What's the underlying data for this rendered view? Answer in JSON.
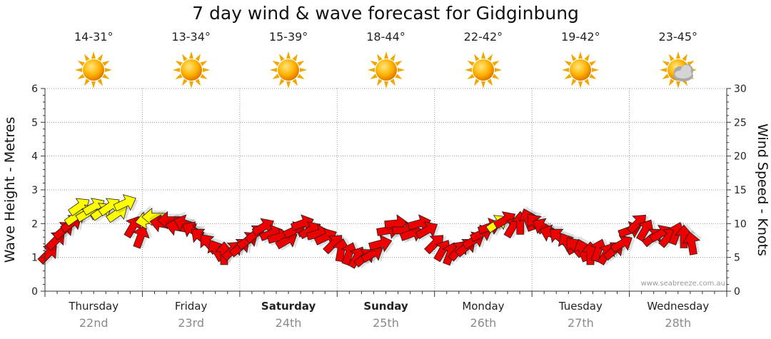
{
  "title": "7 day wind & wave forecast for Gidginbung",
  "watermark": "www.seabreeze.com.au",
  "days": [
    {
      "name": "Thursday",
      "date": "22nd",
      "temp": "14-31°",
      "icon": "sun-icon",
      "bold": false
    },
    {
      "name": "Friday",
      "date": "23rd",
      "temp": "13-34°",
      "icon": "sun-icon",
      "bold": false
    },
    {
      "name": "Saturday",
      "date": "24th",
      "temp": "15-39°",
      "icon": "sun-icon",
      "bold": true
    },
    {
      "name": "Sunday",
      "date": "25th",
      "temp": "18-44°",
      "icon": "sun-icon",
      "bold": true
    },
    {
      "name": "Monday",
      "date": "26th",
      "temp": "22-42°",
      "icon": "sun-icon",
      "bold": false
    },
    {
      "name": "Tuesday",
      "date": "27th",
      "temp": "19-42°",
      "icon": "sun-icon",
      "bold": false
    },
    {
      "name": "Wednesday",
      "date": "28th",
      "temp": "23-45°",
      "icon": "sun-cloud-icon",
      "bold": false
    }
  ],
  "chart_data": {
    "type": "scatter",
    "title": "7 day wind & wave forecast for Gidginbung",
    "y_left_label": "Wave Height - Metres",
    "y_right_label": "Wind Speed - Knots",
    "y_left_range": [
      0,
      6
    ],
    "y_right_range": [
      0,
      30
    ],
    "y_left_ticks": [
      "0",
      "1",
      "2",
      "3",
      "4",
      "5",
      "6"
    ],
    "y_right_ticks": [
      "0",
      "5",
      "10",
      "15",
      "20",
      "25",
      "30"
    ],
    "grid": true,
    "colors": {
      "normal": "#ee0000",
      "light": "#ffff00"
    },
    "wind_series": [
      [
        0.03,
        5.5,
        45,
        "red"
      ],
      [
        0.11,
        7.5,
        45,
        "red"
      ],
      [
        0.19,
        9,
        40,
        "red"
      ],
      [
        0.27,
        10,
        35,
        "red"
      ],
      [
        0.31,
        11,
        35,
        "yellow"
      ],
      [
        0.35,
        12.5,
        35,
        "yellow"
      ],
      [
        0.43,
        11.5,
        30,
        "yellow"
      ],
      [
        0.5,
        12.5,
        30,
        "yellow"
      ],
      [
        0.58,
        11.8,
        35,
        "yellow"
      ],
      [
        0.66,
        12.5,
        35,
        "yellow"
      ],
      [
        0.74,
        11.5,
        35,
        "yellow"
      ],
      [
        0.82,
        13,
        25,
        "yellow"
      ],
      [
        0.9,
        9.5,
        60,
        "red"
      ],
      [
        0.98,
        8,
        70,
        "red"
      ],
      [
        1.05,
        10.5,
        190,
        "yellow"
      ],
      [
        1.12,
        11,
        180,
        "yellow"
      ],
      [
        1.2,
        10,
        170,
        "red"
      ],
      [
        1.28,
        10.5,
        180,
        "red"
      ],
      [
        1.36,
        9.5,
        170,
        "red"
      ],
      [
        1.44,
        10,
        160,
        "red"
      ],
      [
        1.52,
        9,
        150,
        "red"
      ],
      [
        1.6,
        8,
        140,
        "red"
      ],
      [
        1.68,
        7,
        130,
        "red"
      ],
      [
        1.76,
        6,
        120,
        "red"
      ],
      [
        1.84,
        5.5,
        90,
        "red"
      ],
      [
        1.92,
        6,
        45,
        "red"
      ],
      [
        2.0,
        6.5,
        40,
        "red"
      ],
      [
        2.08,
        7.5,
        35,
        "red"
      ],
      [
        2.16,
        8.5,
        40,
        "red"
      ],
      [
        2.24,
        9.5,
        30,
        "red"
      ],
      [
        2.32,
        8.5,
        20,
        "red"
      ],
      [
        2.4,
        8,
        15,
        "red"
      ],
      [
        2.48,
        7.5,
        30,
        "red"
      ],
      [
        2.56,
        9,
        25,
        "red"
      ],
      [
        2.64,
        10,
        20,
        "red"
      ],
      [
        2.72,
        9,
        30,
        "red"
      ],
      [
        2.8,
        8.5,
        15,
        "red"
      ],
      [
        2.88,
        8,
        25,
        "red"
      ],
      [
        2.96,
        7,
        45,
        "red"
      ],
      [
        3.04,
        6,
        80,
        "red"
      ],
      [
        3.12,
        5.5,
        70,
        "red"
      ],
      [
        3.2,
        5,
        60,
        "red"
      ],
      [
        3.28,
        5,
        40,
        "red"
      ],
      [
        3.36,
        5.5,
        30,
        "red"
      ],
      [
        3.44,
        7,
        15,
        "red"
      ],
      [
        3.52,
        9,
        10,
        "red"
      ],
      [
        3.6,
        10,
        5,
        "red"
      ],
      [
        3.68,
        9,
        0,
        "red"
      ],
      [
        3.76,
        8.5,
        20,
        "red"
      ],
      [
        3.84,
        10,
        15,
        "red"
      ],
      [
        3.92,
        9,
        30,
        "red"
      ],
      [
        4.0,
        7,
        45,
        "red"
      ],
      [
        4.08,
        6,
        60,
        "red"
      ],
      [
        4.16,
        5.5,
        70,
        "red"
      ],
      [
        4.24,
        6,
        50,
        "red"
      ],
      [
        4.32,
        6.5,
        40,
        "red"
      ],
      [
        4.4,
        7.5,
        30,
        "red"
      ],
      [
        4.48,
        8.5,
        25,
        "red"
      ],
      [
        4.56,
        9.5,
        20,
        "red"
      ],
      [
        4.64,
        10,
        35,
        "yellow"
      ],
      [
        4.72,
        10.5,
        30,
        "red"
      ],
      [
        4.8,
        9.5,
        60,
        "red"
      ],
      [
        4.88,
        10,
        90,
        "red"
      ],
      [
        4.96,
        10.5,
        110,
        "red"
      ],
      [
        5.04,
        10,
        130,
        "red"
      ],
      [
        5.12,
        9.5,
        150,
        "red"
      ],
      [
        5.2,
        8.5,
        160,
        "red"
      ],
      [
        5.28,
        8,
        140,
        "red"
      ],
      [
        5.36,
        7,
        120,
        "red"
      ],
      [
        5.44,
        6.5,
        130,
        "red"
      ],
      [
        5.52,
        6,
        110,
        "red"
      ],
      [
        5.6,
        5.5,
        90,
        "red"
      ],
      [
        5.68,
        6,
        70,
        "red"
      ],
      [
        5.76,
        5.5,
        60,
        "red"
      ],
      [
        5.84,
        6,
        40,
        "red"
      ],
      [
        5.92,
        7,
        30,
        "red"
      ],
      [
        6.0,
        9,
        20,
        "red"
      ],
      [
        6.08,
        10,
        45,
        "red"
      ],
      [
        6.16,
        9,
        60,
        "red"
      ],
      [
        6.24,
        8,
        40,
        "red"
      ],
      [
        6.32,
        8.5,
        30,
        "red"
      ],
      [
        6.4,
        8,
        50,
        "red"
      ],
      [
        6.48,
        8.5,
        70,
        "red"
      ],
      [
        6.56,
        8,
        90,
        "red"
      ],
      [
        6.64,
        7,
        100,
        "red"
      ]
    ]
  }
}
